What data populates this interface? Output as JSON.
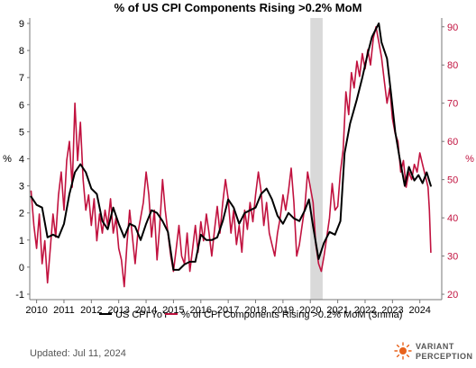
{
  "chart_data": {
    "type": "line",
    "title": "% of US CPI Components Rising >0.2% MoM",
    "ylabel_left": "%",
    "ylabel_right": "%",
    "ylim_left": [
      -1.2,
      9.2
    ],
    "ylim_right": [
      18.6,
      92.3
    ],
    "yticks_left": [
      -1,
      0,
      1,
      2,
      3,
      4,
      5,
      6,
      7,
      8,
      9
    ],
    "yticks_right": [
      20,
      30,
      40,
      50,
      60,
      70,
      80,
      90
    ],
    "xlim": [
      2009.75,
      2024.8
    ],
    "xticks": [
      2010,
      2011,
      2012,
      2013,
      2014,
      2015,
      2016,
      2017,
      2018,
      2019,
      2020,
      2021,
      2022,
      2023,
      2024
    ],
    "shaded_period": [
      2020.0,
      2020.45
    ],
    "legend_position": "bottom",
    "grid": false,
    "series": [
      {
        "name": "US CPI YoY",
        "axis": "left",
        "color": "#000000",
        "points": [
          [
            2009.8,
            2.6
          ],
          [
            2010.0,
            2.3
          ],
          [
            2010.2,
            2.2
          ],
          [
            2010.4,
            1.1
          ],
          [
            2010.6,
            1.2
          ],
          [
            2010.8,
            1.1
          ],
          [
            2011.0,
            1.6
          ],
          [
            2011.2,
            2.7
          ],
          [
            2011.4,
            3.5
          ],
          [
            2011.6,
            3.8
          ],
          [
            2011.8,
            3.5
          ],
          [
            2012.0,
            2.9
          ],
          [
            2012.2,
            2.7
          ],
          [
            2012.4,
            1.7
          ],
          [
            2012.6,
            1.4
          ],
          [
            2012.8,
            2.2
          ],
          [
            2013.0,
            1.6
          ],
          [
            2013.2,
            1.1
          ],
          [
            2013.4,
            1.6
          ],
          [
            2013.6,
            1.5
          ],
          [
            2013.8,
            1.0
          ],
          [
            2014.0,
            1.6
          ],
          [
            2014.2,
            2.1
          ],
          [
            2014.4,
            2.0
          ],
          [
            2014.6,
            1.7
          ],
          [
            2014.8,
            1.3
          ],
          [
            2015.0,
            -0.1
          ],
          [
            2015.2,
            -0.1
          ],
          [
            2015.4,
            0.1
          ],
          [
            2015.6,
            0.2
          ],
          [
            2015.8,
            0.2
          ],
          [
            2016.0,
            1.2
          ],
          [
            2016.2,
            1.0
          ],
          [
            2016.4,
            1.0
          ],
          [
            2016.6,
            1.1
          ],
          [
            2016.8,
            1.7
          ],
          [
            2017.0,
            2.5
          ],
          [
            2017.2,
            2.2
          ],
          [
            2017.4,
            1.6
          ],
          [
            2017.6,
            2.0
          ],
          [
            2017.8,
            2.1
          ],
          [
            2018.0,
            2.2
          ],
          [
            2018.2,
            2.7
          ],
          [
            2018.4,
            2.9
          ],
          [
            2018.6,
            2.5
          ],
          [
            2018.8,
            1.9
          ],
          [
            2019.0,
            1.6
          ],
          [
            2019.2,
            2.0
          ],
          [
            2019.4,
            1.8
          ],
          [
            2019.6,
            1.7
          ],
          [
            2019.8,
            2.1
          ],
          [
            2019.95,
            2.5
          ],
          [
            2020.1,
            1.5
          ],
          [
            2020.3,
            0.3
          ],
          [
            2020.5,
            0.9
          ],
          [
            2020.7,
            1.3
          ],
          [
            2020.9,
            1.2
          ],
          [
            2021.1,
            1.7
          ],
          [
            2021.25,
            4.2
          ],
          [
            2021.45,
            5.3
          ],
          [
            2021.7,
            6.2
          ],
          [
            2021.9,
            7.0
          ],
          [
            2022.1,
            7.9
          ],
          [
            2022.25,
            8.5
          ],
          [
            2022.4,
            8.8
          ],
          [
            2022.5,
            9.0
          ],
          [
            2022.6,
            8.3
          ],
          [
            2022.8,
            7.7
          ],
          [
            2022.95,
            6.4
          ],
          [
            2023.1,
            5.0
          ],
          [
            2023.25,
            4.1
          ],
          [
            2023.45,
            3.0
          ],
          [
            2023.6,
            3.7
          ],
          [
            2023.8,
            3.2
          ],
          [
            2023.95,
            3.4
          ],
          [
            2024.1,
            3.1
          ],
          [
            2024.25,
            3.5
          ],
          [
            2024.4,
            3.0
          ]
        ]
      },
      {
        "name": "% of CPI Components Rising >0.2% MoM (3mma)",
        "axis": "right",
        "color": "#c1123f",
        "points": [
          [
            2009.8,
            47
          ],
          [
            2009.9,
            38
          ],
          [
            2010.0,
            32
          ],
          [
            2010.1,
            41
          ],
          [
            2010.2,
            28
          ],
          [
            2010.3,
            34
          ],
          [
            2010.4,
            23
          ],
          [
            2010.5,
            32
          ],
          [
            2010.6,
            41
          ],
          [
            2010.7,
            35
          ],
          [
            2010.8,
            46
          ],
          [
            2010.9,
            52
          ],
          [
            2011.0,
            42
          ],
          [
            2011.1,
            55
          ],
          [
            2011.2,
            60
          ],
          [
            2011.3,
            48
          ],
          [
            2011.4,
            70
          ],
          [
            2011.5,
            55
          ],
          [
            2011.6,
            65
          ],
          [
            2011.7,
            50
          ],
          [
            2011.8,
            42
          ],
          [
            2011.9,
            46
          ],
          [
            2012.0,
            38
          ],
          [
            2012.1,
            45
          ],
          [
            2012.2,
            34
          ],
          [
            2012.3,
            41
          ],
          [
            2012.4,
            36
          ],
          [
            2012.5,
            42
          ],
          [
            2012.6,
            38
          ],
          [
            2012.7,
            45
          ],
          [
            2012.8,
            36
          ],
          [
            2012.9,
            40
          ],
          [
            2013.0,
            32
          ],
          [
            2013.1,
            29
          ],
          [
            2013.2,
            22
          ],
          [
            2013.3,
            33
          ],
          [
            2013.4,
            42
          ],
          [
            2013.5,
            35
          ],
          [
            2013.6,
            28
          ],
          [
            2013.7,
            36
          ],
          [
            2013.8,
            40
          ],
          [
            2013.9,
            44
          ],
          [
            2014.0,
            52
          ],
          [
            2014.1,
            46
          ],
          [
            2014.2,
            35
          ],
          [
            2014.3,
            42
          ],
          [
            2014.4,
            29
          ],
          [
            2014.5,
            38
          ],
          [
            2014.6,
            50
          ],
          [
            2014.7,
            42
          ],
          [
            2014.8,
            36
          ],
          [
            2014.9,
            30
          ],
          [
            2015.0,
            26
          ],
          [
            2015.1,
            32
          ],
          [
            2015.2,
            38
          ],
          [
            2015.3,
            30
          ],
          [
            2015.4,
            28
          ],
          [
            2015.5,
            36
          ],
          [
            2015.6,
            26
          ],
          [
            2015.7,
            32
          ],
          [
            2015.8,
            38
          ],
          [
            2015.9,
            31
          ],
          [
            2016.0,
            39
          ],
          [
            2016.1,
            34
          ],
          [
            2016.2,
            41
          ],
          [
            2016.3,
            36
          ],
          [
            2016.4,
            30
          ],
          [
            2016.5,
            37
          ],
          [
            2016.6,
            43
          ],
          [
            2016.7,
            36
          ],
          [
            2016.8,
            44
          ],
          [
            2016.9,
            50
          ],
          [
            2017.0,
            45
          ],
          [
            2017.1,
            36
          ],
          [
            2017.2,
            42
          ],
          [
            2017.3,
            33
          ],
          [
            2017.4,
            38
          ],
          [
            2017.5,
            31
          ],
          [
            2017.6,
            42
          ],
          [
            2017.7,
            37
          ],
          [
            2017.8,
            44
          ],
          [
            2017.9,
            39
          ],
          [
            2018.0,
            46
          ],
          [
            2018.1,
            52
          ],
          [
            2018.2,
            47
          ],
          [
            2018.3,
            38
          ],
          [
            2018.4,
            44
          ],
          [
            2018.5,
            36
          ],
          [
            2018.6,
            33
          ],
          [
            2018.7,
            30
          ],
          [
            2018.8,
            36
          ],
          [
            2018.9,
            40
          ],
          [
            2019.0,
            46
          ],
          [
            2019.1,
            42
          ],
          [
            2019.2,
            47
          ],
          [
            2019.3,
            53
          ],
          [
            2019.4,
            44
          ],
          [
            2019.5,
            30
          ],
          [
            2019.6,
            33
          ],
          [
            2019.7,
            38
          ],
          [
            2019.8,
            43
          ],
          [
            2019.9,
            52
          ],
          [
            2020.0,
            48
          ],
          [
            2020.1,
            44
          ],
          [
            2020.2,
            33
          ],
          [
            2020.3,
            28
          ],
          [
            2020.4,
            26
          ],
          [
            2020.5,
            30
          ],
          [
            2020.6,
            35
          ],
          [
            2020.7,
            40
          ],
          [
            2020.8,
            49
          ],
          [
            2020.9,
            42
          ],
          [
            2021.0,
            43
          ],
          [
            2021.1,
            52
          ],
          [
            2021.2,
            58
          ],
          [
            2021.3,
            73
          ],
          [
            2021.4,
            67
          ],
          [
            2021.5,
            78
          ],
          [
            2021.6,
            74
          ],
          [
            2021.7,
            81
          ],
          [
            2021.8,
            77
          ],
          [
            2021.9,
            83
          ],
          [
            2022.0,
            79
          ],
          [
            2022.1,
            84
          ],
          [
            2022.2,
            80
          ],
          [
            2022.3,
            87
          ],
          [
            2022.4,
            90
          ],
          [
            2022.5,
            86
          ],
          [
            2022.6,
            82
          ],
          [
            2022.7,
            76
          ],
          [
            2022.8,
            70
          ],
          [
            2022.9,
            74
          ],
          [
            2023.0,
            66
          ],
          [
            2023.1,
            62
          ],
          [
            2023.2,
            60
          ],
          [
            2023.3,
            52
          ],
          [
            2023.4,
            55
          ],
          [
            2023.5,
            48
          ],
          [
            2023.6,
            52
          ],
          [
            2023.7,
            50
          ],
          [
            2023.8,
            54
          ],
          [
            2023.9,
            52
          ],
          [
            2024.0,
            57
          ],
          [
            2024.1,
            54
          ],
          [
            2024.2,
            51
          ],
          [
            2024.3,
            48
          ],
          [
            2024.35,
            42
          ],
          [
            2024.4,
            31
          ]
        ]
      }
    ]
  },
  "legend": {
    "series_1": "US CPI YoY",
    "series_2": "% of CPI Components Rising >0.2% MoM (3mma)"
  },
  "footer": {
    "updated": "Updated: Jul 11, 2024",
    "brand_line_1": "VARIANT",
    "brand_line_2": "PERCEPTION"
  },
  "colors": {
    "cpi": "#000000",
    "components": "#c1123f",
    "shade": "#d9d9d9",
    "axis": "#777777"
  }
}
